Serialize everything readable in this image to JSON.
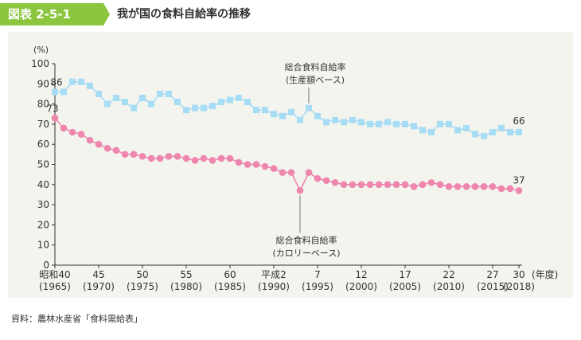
{
  "header": {
    "badge": "図表 2-5-1",
    "title": "我が国の食料自給率の推移"
  },
  "source": "資料：農林水産省「食料需給表」",
  "colors": {
    "badge": "#8cc63f",
    "production_series": "#a7dcf5",
    "calorie_series": "#ee86ad",
    "panel_bg": "#f3f4ee"
  },
  "chart_data": {
    "type": "line",
    "unit_label": "(%)",
    "ylim": [
      0,
      100
    ],
    "yticks": [
      0,
      10,
      20,
      30,
      40,
      50,
      60,
      70,
      80,
      90,
      100
    ],
    "x_range": [
      1965,
      2018
    ],
    "xunit_label": "(年度)",
    "xticks": [
      {
        "year": 1965,
        "label": "昭和40",
        "sub": "(1965)"
      },
      {
        "year": 1970,
        "label": "45",
        "sub": "(1970)"
      },
      {
        "year": 1975,
        "label": "50",
        "sub": "(1975)"
      },
      {
        "year": 1980,
        "label": "55",
        "sub": "(1980)"
      },
      {
        "year": 1985,
        "label": "60",
        "sub": "(1985)"
      },
      {
        "year": 1990,
        "label": "平成2",
        "sub": "(1990)"
      },
      {
        "year": 1995,
        "label": "7",
        "sub": "(1995)"
      },
      {
        "year": 2000,
        "label": "12",
        "sub": "(2000)"
      },
      {
        "year": 2005,
        "label": "17",
        "sub": "(2005)"
      },
      {
        "year": 2010,
        "label": "22",
        "sub": "(2010)"
      },
      {
        "year": 2015,
        "label": "27",
        "sub": "(2015)"
      },
      {
        "year": 2018,
        "label": "30",
        "sub": "(2018)"
      }
    ],
    "x": [
      1965,
      1966,
      1967,
      1968,
      1969,
      1970,
      1971,
      1972,
      1973,
      1974,
      1975,
      1976,
      1977,
      1978,
      1979,
      1980,
      1981,
      1982,
      1983,
      1984,
      1985,
      1986,
      1987,
      1988,
      1989,
      1990,
      1991,
      1992,
      1993,
      1994,
      1995,
      1996,
      1997,
      1998,
      1999,
      2000,
      2001,
      2002,
      2003,
      2004,
      2005,
      2006,
      2007,
      2008,
      2009,
      2010,
      2011,
      2012,
      2013,
      2014,
      2015,
      2016,
      2017,
      2018
    ],
    "series": [
      {
        "name": "総合食料自給率（生産額ベース）",
        "label_line1": "総合食料自給率",
        "label_line2": "(生産額ベース)",
        "marker": "square",
        "values": [
          86,
          86,
          91,
          91,
          89,
          85,
          80,
          83,
          81,
          78,
          83,
          80,
          85,
          85,
          81,
          77,
          78,
          78,
          79,
          81,
          82,
          83,
          81,
          77,
          77,
          75,
          74,
          76,
          72,
          78,
          74,
          71,
          72,
          71,
          72,
          71,
          70,
          70,
          71,
          70,
          70,
          69,
          67,
          66,
          70,
          70,
          67,
          68,
          65,
          64,
          66,
          68,
          66,
          66
        ],
        "start_label": "86",
        "end_label": "66"
      },
      {
        "name": "総合食料自給率（カロリーベース）",
        "label_line1": "総合食料自給率",
        "label_line2": "(カロリーベース)",
        "marker": "circle",
        "values": [
          73,
          68,
          66,
          65,
          62,
          60,
          58,
          57,
          55,
          55,
          54,
          53,
          53,
          54,
          54,
          53,
          52,
          53,
          52,
          53,
          53,
          51,
          50,
          50,
          49,
          48,
          46,
          46,
          37,
          46,
          43,
          42,
          41,
          40,
          40,
          40,
          40,
          40,
          40,
          40,
          40,
          39,
          40,
          41,
          40,
          39,
          39,
          39,
          39,
          39,
          39,
          38,
          38,
          37
        ],
        "start_label": "73",
        "end_label": "37"
      }
    ]
  }
}
